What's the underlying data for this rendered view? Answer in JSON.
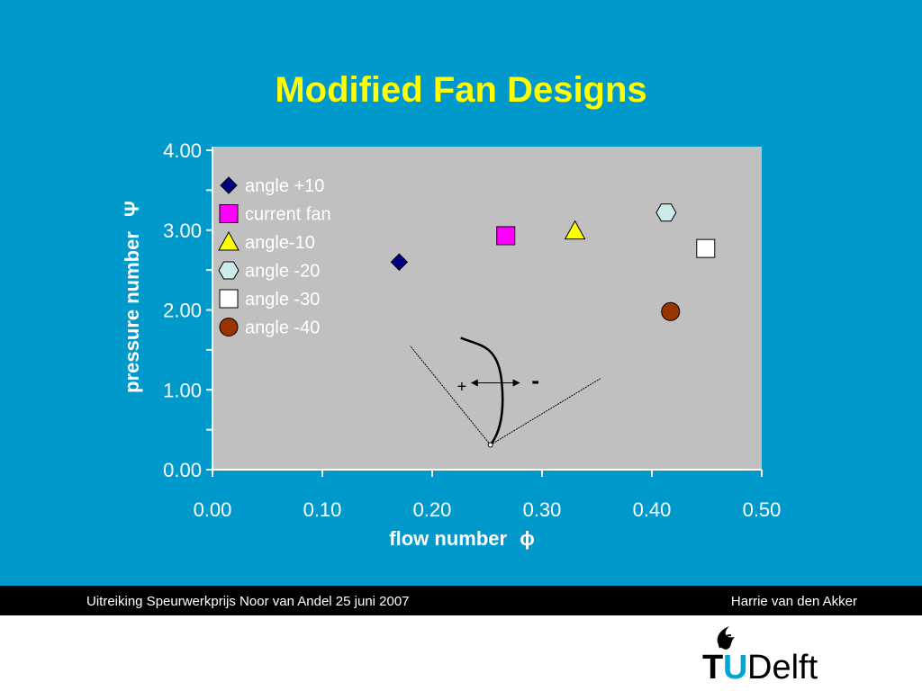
{
  "slide": {
    "title": "Modified Fan Designs",
    "background_color": "#0099cc",
    "title_color": "#ffff00"
  },
  "footer": {
    "left": "Uitreiking Speurwerkprijs Noor van Andel  25 juni 2007",
    "right": "Harrie van den Akker"
  },
  "logo": {
    "text": "TUDelft",
    "accent_color": "#00a6d6"
  },
  "chart_data": {
    "type": "scatter",
    "title": "",
    "xlabel": "flow number",
    "xlabel_symbol": "ϕ",
    "ylabel": "pressure number",
    "ylabel_symbol": "Ψ",
    "xlim": [
      0,
      0.5
    ],
    "ylim": [
      0,
      4
    ],
    "x_ticks": [
      "0.00",
      "0.10",
      "0.20",
      "0.30",
      "0.40",
      "0.50"
    ],
    "y_ticks": [
      "0.00",
      "1.00",
      "2.00",
      "3.00",
      "4.00"
    ],
    "plot_background": "#c0c0c0",
    "grid": false,
    "legend_position": "top-left",
    "series": [
      {
        "name": "angle +10",
        "marker": "diamond",
        "color": "#000080",
        "points": [
          [
            0.17,
            2.6
          ]
        ]
      },
      {
        "name": "current fan",
        "marker": "square",
        "color": "#ff00ff",
        "points": [
          [
            0.267,
            2.93
          ]
        ]
      },
      {
        "name": "angle-10",
        "marker": "triangle",
        "color": "#ffff00",
        "points": [
          [
            0.33,
            2.99
          ]
        ]
      },
      {
        "name": "angle -20",
        "marker": "hexagon",
        "color": "#ccecec",
        "points": [
          [
            0.413,
            3.22
          ]
        ]
      },
      {
        "name": "angle -30",
        "marker": "square",
        "color": "#ffffff",
        "points": [
          [
            0.449,
            2.77
          ]
        ]
      },
      {
        "name": "angle -40",
        "marker": "circle",
        "color": "#993300",
        "points": [
          [
            0.417,
            1.98
          ]
        ]
      }
    ],
    "annotations": {
      "plus": "+",
      "minus": "-",
      "vertex": [
        0.253,
        0.31
      ],
      "line_left_end": [
        0.18,
        1.55
      ],
      "line_right_end": [
        0.353,
        1.14
      ],
      "curve": [
        [
          0.226,
          1.65
        ],
        [
          0.245,
          1.55
        ],
        [
          0.26,
          1.1
        ],
        [
          0.264,
          0.6
        ],
        [
          0.253,
          0.31
        ]
      ],
      "arrow": [
        [
          0.24,
          1.2
        ],
        [
          0.28,
          1.2
        ]
      ]
    }
  }
}
